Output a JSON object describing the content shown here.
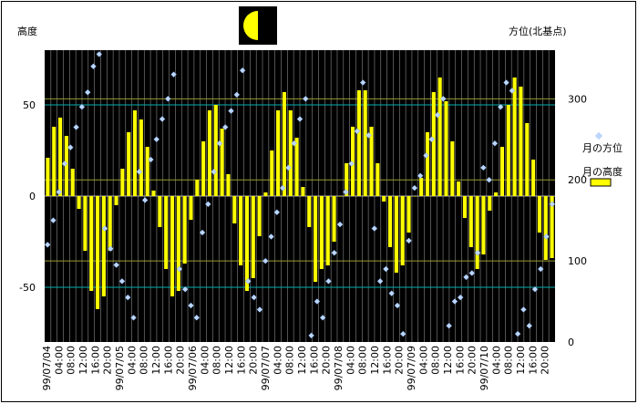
{
  "chart_data": {
    "type": "bar+scatter",
    "left_axis_title": "高度",
    "right_axis_title": "方位(北基点)",
    "left_ylim": [
      -80,
      80
    ],
    "left_ticks": [
      -50,
      0,
      50
    ],
    "right_ylim": [
      0,
      360
    ],
    "right_ticks": [
      0,
      100,
      200,
      300
    ],
    "x_labels": [
      "99/07/04",
      "04:00",
      "08:00",
      "12:00",
      "16:00",
      "20:00",
      "99/07/05",
      "04:00",
      "08:00",
      "12:00",
      "16:00",
      "20:00",
      "99/07/06",
      "04:00",
      "08:00",
      "12:00",
      "16:00",
      "20:00",
      "99/07/07",
      "04:00",
      "08:00",
      "12:00",
      "16:00",
      "20:00",
      "99/07/08",
      "04:00",
      "08:00",
      "12:00",
      "16:00",
      "20:00",
      "99/07/09",
      "04:00",
      "08:00",
      "12:00",
      "16:00",
      "20:00",
      "99/07/10",
      "04:00",
      "08:00",
      "12:00",
      "16:00",
      "20:00"
    ],
    "series": [
      {
        "name": "月の高度",
        "kind": "bar",
        "color": "#ffff00",
        "axis": "left",
        "values": [
          21,
          38,
          43,
          33,
          15,
          -7,
          -30,
          -52,
          -62,
          -55,
          -30,
          -5,
          15,
          35,
          47,
          42,
          27,
          3,
          -17,
          -40,
          -55,
          -52,
          -37,
          -13,
          9,
          30,
          47,
          50,
          37,
          12,
          -15,
          -38,
          -52,
          -45,
          -22,
          2,
          25,
          47,
          57,
          47,
          32,
          5,
          -17,
          -47,
          -40,
          -38,
          -25,
          0,
          18,
          38,
          58,
          58,
          38,
          18,
          -3,
          -28,
          -42,
          -38,
          -20,
          0,
          10,
          35,
          57,
          65,
          52,
          30,
          8,
          -12,
          -28,
          -40,
          -32,
          -8,
          2,
          27,
          50,
          65,
          60,
          40,
          20,
          -20,
          -35,
          -34
        ]
      },
      {
        "name": "月の方位",
        "kind": "scatter",
        "color": "#bcd6ff",
        "axis": "right",
        "values": [
          120,
          150,
          185,
          220,
          240,
          265,
          290,
          308,
          340,
          355,
          140,
          115,
          95,
          75,
          55,
          30,
          210,
          175,
          225,
          250,
          275,
          300,
          330,
          90,
          65,
          45,
          30,
          135,
          170,
          210,
          245,
          265,
          285,
          305,
          335,
          75,
          55,
          40,
          100,
          130,
          160,
          190,
          215,
          245,
          275,
          300,
          8,
          50,
          30,
          75,
          110,
          145,
          185,
          220,
          260,
          320,
          255,
          140,
          75,
          90,
          60,
          45,
          10,
          125,
          190,
          205,
          230,
          250,
          280,
          300,
          20,
          50,
          55,
          80,
          85,
          110,
          215,
          200,
          245,
          290,
          320,
          310,
          10,
          40,
          20,
          65,
          90,
          130,
          170
        ]
      }
    ],
    "legend": [
      "月の方位",
      "月の高度"
    ]
  }
}
